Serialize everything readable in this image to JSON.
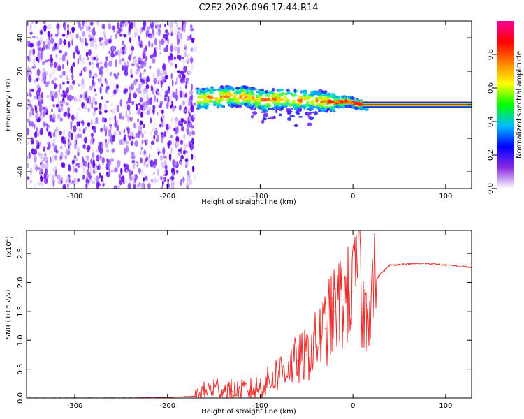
{
  "title": "C2E2.2026.096.17.44.R14",
  "chart_data": [
    {
      "type": "heatmap",
      "name": "spectrogram",
      "xlabel": "Height of straight line (km)",
      "ylabel": "Frequency (Hz)",
      "xlim": [
        -352,
        128
      ],
      "ylim": [
        -50,
        50
      ],
      "xticks": [
        -300,
        -200,
        -100,
        0,
        100
      ],
      "xtick_labels": [
        "-300",
        "-200",
        "-100",
        "0",
        "100"
      ],
      "yticks": [
        -40,
        -20,
        0,
        20,
        40
      ],
      "ytick_labels": [
        "-40",
        "-20",
        "0",
        "20",
        "40"
      ],
      "noise_region_x": [
        -352,
        -170
      ],
      "signal_ridge": [
        {
          "x": -168,
          "f": 3.5
        },
        {
          "x": -150,
          "f": 4.5
        },
        {
          "x": -130,
          "f": 5.0
        },
        {
          "x": -110,
          "f": 4.5
        },
        {
          "x": -95,
          "f": 2.5
        },
        {
          "x": -80,
          "f": 3.5
        },
        {
          "x": -60,
          "f": 3.0
        },
        {
          "x": -40,
          "f": 2.5
        },
        {
          "x": -20,
          "f": 1.5
        },
        {
          "x": -5,
          "f": 2.0
        },
        {
          "x": 5,
          "f": 0.5
        },
        {
          "x": 15,
          "f": 0.0
        },
        {
          "x": 128,
          "f": 0.0
        }
      ],
      "colorbar": {
        "label": "Normalized spectral amplitude",
        "ticks": [
          0.0,
          0.2,
          0.4,
          0.6,
          0.8
        ],
        "tick_labels": [
          "0.0",
          "0.2",
          "0.4",
          "0.6",
          "0.8"
        ],
        "range": [
          0,
          1
        ],
        "colors": [
          "#ffffff",
          "#8a2be2",
          "#0000ff",
          "#00bfff",
          "#00ff00",
          "#ffff00",
          "#ff8000",
          "#ff0000",
          "#ff00a0"
        ]
      }
    },
    {
      "type": "line",
      "name": "snr",
      "xlabel": "Height of straight line (km)",
      "ylabel": "SNR (10 * v/v)",
      "scale_label": "(x10",
      "scale_exponent": "4",
      "scale_suffix": ")",
      "xlim": [
        -352,
        128
      ],
      "ylim": [
        0,
        2.9
      ],
      "xticks": [
        -300,
        -200,
        -100,
        0,
        100
      ],
      "xtick_labels": [
        "-300",
        "-200",
        "-100",
        "0",
        "100"
      ],
      "yticks": [
        0.0,
        0.5,
        1.0,
        1.5,
        2.0,
        2.5
      ],
      "ytick_labels": [
        "0.0",
        "0.5",
        "1.0",
        "1.5",
        "2.0",
        "2.5"
      ],
      "series": [
        {
          "name": "SNR",
          "color": "#ee2a2a",
          "x": [
            -352,
            -300,
            -250,
            -200,
            -170,
            -160,
            -150,
            -140,
            -130,
            -120,
            -110,
            -100,
            -90,
            -80,
            -70,
            -60,
            -50,
            -40,
            -30,
            -20,
            -10,
            0,
            5,
            8,
            10,
            15,
            20,
            30,
            40,
            60,
            80,
            100,
            128
          ],
          "y": [
            0.0,
            0.0,
            0.0,
            0.01,
            0.03,
            0.1,
            0.18,
            0.15,
            0.12,
            0.12,
            0.14,
            0.2,
            0.3,
            0.45,
            0.55,
            0.65,
            0.75,
            0.95,
            1.2,
            1.5,
            1.7,
            1.85,
            2.3,
            2.85,
            1.4,
            1.6,
            1.95,
            2.15,
            2.3,
            2.32,
            2.33,
            2.3,
            2.26
          ]
        }
      ]
    }
  ]
}
